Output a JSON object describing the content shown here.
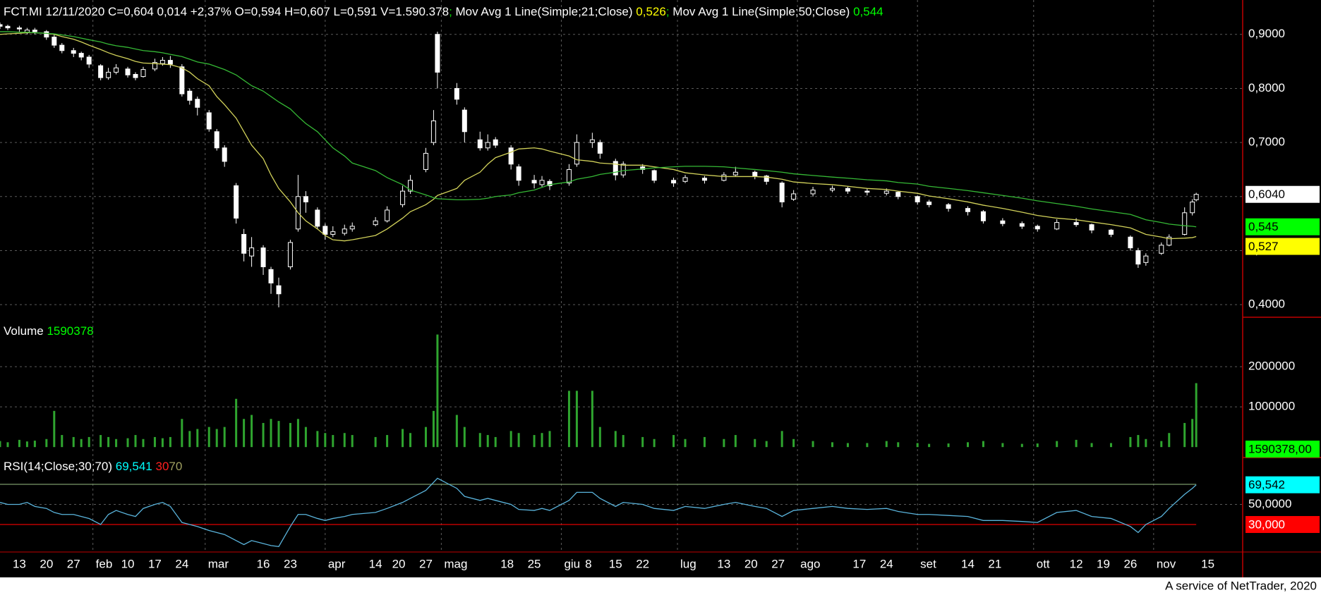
{
  "chart_data": {
    "type": "candlestick",
    "title": "FCT.MI 12/11/2020 C=0,604 0,014 +2,37% O=0,594 H=0,607 L=0,591 V=1.590.378",
    "separator": "; ",
    "x": [
      "08/01",
      "10/01",
      "13/01",
      "15/01",
      "17/01",
      "20/01",
      "22/01",
      "24/01",
      "27/01",
      "29/01",
      "31/01",
      "03/02",
      "05/02",
      "07/02",
      "10/02",
      "12/02",
      "14/02",
      "17/02",
      "19/02",
      "21/02",
      "24/02",
      "26/02",
      "28/02",
      "02/03",
      "04/03",
      "06/03",
      "09/03",
      "11/03",
      "13/03",
      "16/03",
      "18/03",
      "20/03",
      "23/03",
      "25/03",
      "27/03",
      "30/03",
      "01/04",
      "03/04",
      "06/04",
      "08/04",
      "14/04",
      "17/04",
      "21/04",
      "23/04",
      "27/04",
      "29/04",
      "30/04",
      "05/05",
      "07/05",
      "11/05",
      "13/05",
      "15/05",
      "19/05",
      "21/05",
      "25/05",
      "27/05",
      "29/05",
      "03/06",
      "05/06",
      "09/06",
      "11/06",
      "15/06",
      "17/06",
      "22/06",
      "25/06",
      "30/06",
      "03/07",
      "08/07",
      "13/07",
      "16/07",
      "21/07",
      "24/07",
      "28/07",
      "31/07",
      "05/08",
      "10/08",
      "14/08",
      "19/08",
      "24/08",
      "27/08",
      "01/09",
      "04/09",
      "09/09",
      "14/09",
      "18/09",
      "23/09",
      "28/09",
      "02/10",
      "07/10",
      "12/10",
      "16/10",
      "21/10",
      "26/10",
      "28/10",
      "30/10",
      "03/11",
      "05/11",
      "09/11",
      "11/11",
      "12/11"
    ],
    "open": [
      0.918,
      0.915,
      0.912,
      0.904,
      0.908,
      0.905,
      0.895,
      0.88,
      0.87,
      0.865,
      0.858,
      0.842,
      0.82,
      0.83,
      0.836,
      0.826,
      0.822,
      0.836,
      0.846,
      0.852,
      0.84,
      0.795,
      0.78,
      0.755,
      0.72,
      0.69,
      0.62,
      0.53,
      0.49,
      0.505,
      0.465,
      0.435,
      0.47,
      0.54,
      0.6,
      0.575,
      0.545,
      0.53,
      0.532,
      0.54,
      0.548,
      0.555,
      0.585,
      0.61,
      0.65,
      0.7,
      0.9,
      0.8,
      0.76,
      0.705,
      0.69,
      0.705,
      0.69,
      0.655,
      0.63,
      0.622,
      0.628,
      0.625,
      0.66,
      0.7,
      0.7,
      0.665,
      0.64,
      0.655,
      0.648,
      0.63,
      0.628,
      0.634,
      0.63,
      0.64,
      0.645,
      0.638,
      0.625,
      0.595,
      0.605,
      0.612,
      0.615,
      0.61,
      0.606,
      0.608,
      0.6,
      0.59,
      0.585,
      0.578,
      0.572,
      0.555,
      0.55,
      0.545,
      0.54,
      0.552,
      0.548,
      0.538,
      0.525,
      0.5,
      0.478,
      0.495,
      0.51,
      0.53,
      0.57,
      0.594
    ],
    "high": [
      0.922,
      0.918,
      0.916,
      0.912,
      0.912,
      0.908,
      0.9,
      0.884,
      0.875,
      0.868,
      0.862,
      0.845,
      0.838,
      0.845,
      0.84,
      0.83,
      0.84,
      0.855,
      0.858,
      0.86,
      0.845,
      0.8,
      0.785,
      0.76,
      0.725,
      0.695,
      0.625,
      0.54,
      0.525,
      0.51,
      0.47,
      0.45,
      0.52,
      0.64,
      0.61,
      0.58,
      0.55,
      0.545,
      0.548,
      0.552,
      0.562,
      0.582,
      0.62,
      0.64,
      0.69,
      0.76,
      0.905,
      0.81,
      0.765,
      0.72,
      0.715,
      0.71,
      0.695,
      0.66,
      0.64,
      0.638,
      0.632,
      0.66,
      0.715,
      0.718,
      0.705,
      0.67,
      0.665,
      0.66,
      0.65,
      0.635,
      0.64,
      0.638,
      0.645,
      0.655,
      0.648,
      0.64,
      0.628,
      0.612,
      0.618,
      0.62,
      0.618,
      0.614,
      0.615,
      0.61,
      0.602,
      0.594,
      0.588,
      0.582,
      0.575,
      0.56,
      0.554,
      0.548,
      0.558,
      0.56,
      0.55,
      0.54,
      0.528,
      0.505,
      0.495,
      0.515,
      0.53,
      0.58,
      0.595,
      0.607
    ],
    "low": [
      0.91,
      0.908,
      0.905,
      0.9,
      0.9,
      0.89,
      0.875,
      0.865,
      0.858,
      0.852,
      0.838,
      0.815,
      0.816,
      0.826,
      0.82,
      0.815,
      0.82,
      0.832,
      0.842,
      0.838,
      0.785,
      0.77,
      0.75,
      0.72,
      0.685,
      0.655,
      0.55,
      0.48,
      0.47,
      0.455,
      0.42,
      0.395,
      0.465,
      0.535,
      0.57,
      0.54,
      0.52,
      0.525,
      0.528,
      0.535,
      0.545,
      0.552,
      0.58,
      0.605,
      0.645,
      0.695,
      0.8,
      0.77,
      0.7,
      0.685,
      0.685,
      0.69,
      0.65,
      0.62,
      0.615,
      0.618,
      0.612,
      0.62,
      0.655,
      0.69,
      0.67,
      0.63,
      0.635,
      0.642,
      0.625,
      0.618,
      0.625,
      0.624,
      0.628,
      0.638,
      0.632,
      0.622,
      0.58,
      0.592,
      0.6,
      0.608,
      0.605,
      0.602,
      0.602,
      0.595,
      0.585,
      0.58,
      0.572,
      0.565,
      0.55,
      0.545,
      0.54,
      0.535,
      0.538,
      0.544,
      0.532,
      0.525,
      0.5,
      0.468,
      0.472,
      0.492,
      0.508,
      0.528,
      0.565,
      0.591
    ],
    "close": [
      0.915,
      0.912,
      0.91,
      0.908,
      0.905,
      0.895,
      0.88,
      0.87,
      0.865,
      0.858,
      0.845,
      0.82,
      0.83,
      0.838,
      0.825,
      0.82,
      0.835,
      0.848,
      0.852,
      0.845,
      0.79,
      0.778,
      0.765,
      0.725,
      0.69,
      0.665,
      0.56,
      0.495,
      0.505,
      0.47,
      0.44,
      0.42,
      0.515,
      0.6,
      0.59,
      0.545,
      0.53,
      0.535,
      0.54,
      0.545,
      0.555,
      0.575,
      0.61,
      0.63,
      0.68,
      0.74,
      0.83,
      0.78,
      0.72,
      0.69,
      0.7,
      0.695,
      0.66,
      0.63,
      0.625,
      0.63,
      0.62,
      0.65,
      0.7,
      0.705,
      0.68,
      0.64,
      0.66,
      0.65,
      0.63,
      0.625,
      0.635,
      0.63,
      0.64,
      0.645,
      0.638,
      0.628,
      0.59,
      0.605,
      0.612,
      0.615,
      0.61,
      0.608,
      0.61,
      0.6,
      0.59,
      0.585,
      0.578,
      0.572,
      0.555,
      0.55,
      0.545,
      0.54,
      0.552,
      0.548,
      0.538,
      0.53,
      0.505,
      0.475,
      0.49,
      0.51,
      0.525,
      0.57,
      0.59,
      0.604
    ],
    "color": "#ffffff",
    "last_label": "0,6040",
    "xlim": [
      "08/01",
      "24/11"
    ],
    "xticks": [
      {
        "value": "13/01",
        "label": "13"
      },
      {
        "value": "20/01",
        "label": "20"
      },
      {
        "value": "27/01",
        "label": "27"
      },
      {
        "value": "01/02",
        "label": "feb"
      },
      {
        "value": "10/02",
        "label": "10"
      },
      {
        "value": "17/02",
        "label": "17"
      },
      {
        "value": "24/02",
        "label": "24"
      },
      {
        "value": "01/03",
        "label": "mar"
      },
      {
        "value": "16/03",
        "label": "16"
      },
      {
        "value": "23/03",
        "label": "23"
      },
      {
        "value": "01/04",
        "label": "apr"
      },
      {
        "value": "14/04",
        "label": "14"
      },
      {
        "value": "20/04",
        "label": "20"
      },
      {
        "value": "27/04",
        "label": "27"
      },
      {
        "value": "01/05",
        "label": "mag"
      },
      {
        "value": "18/05",
        "label": "18"
      },
      {
        "value": "25/05",
        "label": "25"
      },
      {
        "value": "01/06",
        "label": "giu"
      },
      {
        "value": "08/06",
        "label": "8"
      },
      {
        "value": "15/06",
        "label": "15"
      },
      {
        "value": "22/06",
        "label": "22"
      },
      {
        "value": "01/07",
        "label": "lug"
      },
      {
        "value": "13/07",
        "label": "13"
      },
      {
        "value": "20/07",
        "label": "20"
      },
      {
        "value": "27/07",
        "label": "27"
      },
      {
        "value": "01/08",
        "label": "ago"
      },
      {
        "value": "17/08",
        "label": "17"
      },
      {
        "value": "24/08",
        "label": "24"
      },
      {
        "value": "01/09",
        "label": "set"
      },
      {
        "value": "14/09",
        "label": "14"
      },
      {
        "value": "21/09",
        "label": "21"
      },
      {
        "value": "01/10",
        "label": "ott"
      },
      {
        "value": "12/10",
        "label": "12"
      },
      {
        "value": "19/10",
        "label": "19"
      },
      {
        "value": "26/10",
        "label": "26"
      },
      {
        "value": "01/11",
        "label": "nov"
      },
      {
        "value": "15/11",
        "label": "15"
      }
    ],
    "ylim": [
      0.3767,
      0.9636
    ],
    "yticks": [
      {
        "value": 0.4,
        "label": "0,4000"
      },
      {
        "value": 0.5,
        "label": "0,5000"
      },
      {
        "value": 0.6,
        "label": "0,6000"
      },
      {
        "value": 0.7,
        "label": "0,7000"
      },
      {
        "value": 0.8,
        "label": "0,8000"
      },
      {
        "value": 0.9,
        "label": "0,9000"
      }
    ],
    "grid": true,
    "series": [
      {
        "name": "Mov Avg 1 Line(Simple;21;Close)",
        "color": "#d2d25a",
        "label_color": "#ffff00",
        "header_label": "0,526",
        "axis_label": "0,527",
        "values": [
          0.9,
          0.901,
          0.902,
          0.903,
          0.903,
          0.902,
          0.9,
          0.896,
          0.891,
          0.886,
          0.88,
          0.872,
          0.866,
          0.861,
          0.855,
          0.85,
          0.847,
          0.846,
          0.845,
          0.844,
          0.838,
          0.83,
          0.818,
          0.805,
          0.785,
          0.77,
          0.745,
          0.72,
          0.695,
          0.67,
          0.64,
          0.615,
          0.59,
          0.57,
          0.555,
          0.54,
          0.528,
          0.52,
          0.518,
          0.52,
          0.528,
          0.54,
          0.56,
          0.572,
          0.585,
          0.595,
          0.602,
          0.615,
          0.63,
          0.645,
          0.66,
          0.672,
          0.682,
          0.688,
          0.69,
          0.688,
          0.684,
          0.675,
          0.668,
          0.665,
          0.662,
          0.66,
          0.658,
          0.658,
          0.655,
          0.65,
          0.644,
          0.64,
          0.637,
          0.637,
          0.637,
          0.636,
          0.632,
          0.627,
          0.624,
          0.622,
          0.619,
          0.615,
          0.613,
          0.61,
          0.606,
          0.601,
          0.596,
          0.59,
          0.584,
          0.578,
          0.571,
          0.565,
          0.56,
          0.557,
          0.553,
          0.548,
          0.542,
          0.536,
          0.53,
          0.525,
          0.522,
          0.523,
          0.524,
          0.526
        ]
      },
      {
        "name": "Mov Avg 1 Line(Simple;50;Close)",
        "color": "#35b835",
        "label_color": "#00ff00",
        "header_label": "0,544",
        "axis_label": "0,545",
        "values": [
          0.905,
          0.905,
          0.904,
          0.904,
          0.903,
          0.902,
          0.901,
          0.899,
          0.896,
          0.893,
          0.89,
          0.886,
          0.882,
          0.879,
          0.876,
          0.873,
          0.87,
          0.868,
          0.866,
          0.863,
          0.859,
          0.854,
          0.849,
          0.845,
          0.84,
          0.835,
          0.825,
          0.815,
          0.805,
          0.795,
          0.785,
          0.775,
          0.762,
          0.748,
          0.735,
          0.72,
          0.705,
          0.69,
          0.675,
          0.662,
          0.648,
          0.635,
          0.622,
          0.612,
          0.603,
          0.598,
          0.596,
          0.594,
          0.594,
          0.595,
          0.597,
          0.6,
          0.603,
          0.607,
          0.612,
          0.617,
          0.622,
          0.627,
          0.632,
          0.637,
          0.641,
          0.645,
          0.648,
          0.651,
          0.653,
          0.655,
          0.656,
          0.656,
          0.655,
          0.653,
          0.65,
          0.648,
          0.645,
          0.642,
          0.639,
          0.636,
          0.634,
          0.631,
          0.629,
          0.626,
          0.623,
          0.619,
          0.615,
          0.611,
          0.607,
          0.602,
          0.597,
          0.592,
          0.587,
          0.582,
          0.577,
          0.572,
          0.567,
          0.562,
          0.557,
          0.552,
          0.549,
          0.546,
          0.545,
          0.544
        ]
      }
    ],
    "volume": {
      "type": "bar",
      "title": "Volume",
      "header_label": "1590378",
      "axis_label": "1590378,00",
      "color": "#2fa52f",
      "label_color": "#00ff00",
      "values": [
        150000,
        120000,
        180000,
        140000,
        160000,
        200000,
        900000,
        300000,
        250000,
        200000,
        250000,
        300000,
        250000,
        200000,
        220000,
        300000,
        200000,
        250000,
        220000,
        250000,
        700000,
        400000,
        450000,
        500000,
        450000,
        500000,
        1200000,
        700000,
        800000,
        600000,
        700000,
        650000,
        600000,
        700000,
        500000,
        400000,
        350000,
        300000,
        350000,
        300000,
        250000,
        300000,
        450000,
        350000,
        500000,
        900000,
        2800000,
        800000,
        500000,
        350000,
        300000,
        250000,
        400000,
        350000,
        300000,
        350000,
        400000,
        1400000,
        1400000,
        1400000,
        500000,
        400000,
        300000,
        250000,
        200000,
        300000,
        200000,
        250000,
        200000,
        300000,
        200000,
        150000,
        400000,
        200000,
        150000,
        120000,
        100000,
        100000,
        150000,
        120000,
        100000,
        80000,
        90000,
        120000,
        150000,
        100000,
        80000,
        90000,
        150000,
        180000,
        100000,
        100000,
        250000,
        300000,
        200000,
        150000,
        350000,
        600000,
        700000,
        1590378
      ],
      "ylim": [
        -260000,
        3230000
      ],
      "yticks": [
        1000000,
        2000000
      ]
    },
    "rsi": {
      "type": "line",
      "title": "RSI(14;Close;30;70)",
      "header_label": "69,541",
      "axis_label": "69,542",
      "color": "#5ab4dc",
      "label_color": "#00ffff",
      "values": [
        52,
        50,
        50,
        52,
        48,
        46,
        42,
        40,
        40,
        38,
        36,
        30,
        40,
        44,
        40,
        38,
        46,
        50,
        52,
        48,
        32,
        30,
        28,
        24,
        22,
        20,
        14,
        10,
        14,
        11,
        9,
        8,
        28,
        40,
        40,
        36,
        34,
        36,
        38,
        40,
        42,
        46,
        52,
        56,
        64,
        72,
        76,
        66,
        58,
        54,
        56,
        54,
        50,
        45,
        44,
        46,
        44,
        54,
        62,
        62,
        56,
        48,
        52,
        50,
        46,
        44,
        48,
        46,
        50,
        52,
        48,
        46,
        38,
        44,
        46,
        48,
        46,
        45,
        46,
        43,
        40,
        40,
        39,
        38,
        34,
        34,
        33,
        32,
        42,
        44,
        38,
        36,
        28,
        22,
        30,
        38,
        46,
        60,
        66,
        69.541
      ],
      "ylim": [
        2.6,
        96.7
      ],
      "yticks": [
        {
          "value": 50,
          "label": "50,0000"
        }
      ],
      "levels": [
        {
          "value": 30,
          "label": "30,000",
          "color": "#e00000"
        },
        {
          "value": 70,
          "color": "#7a9a6a"
        }
      ]
    },
    "footer": "A service of NetTrader, 2020"
  }
}
